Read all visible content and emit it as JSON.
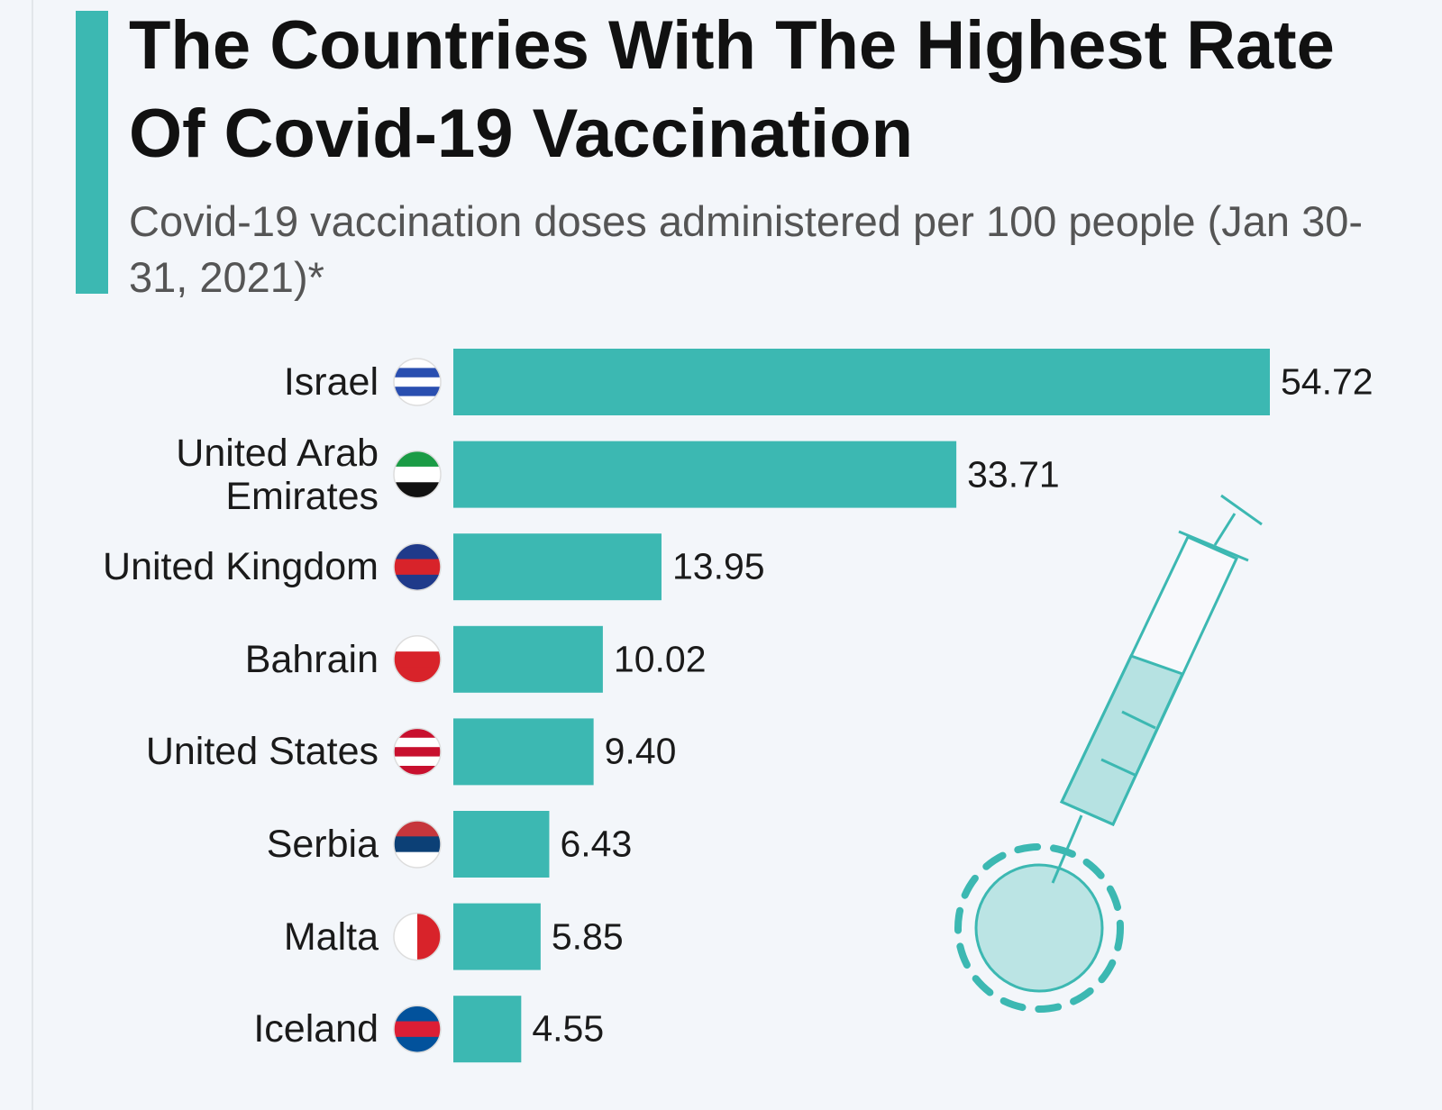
{
  "chart_data": {
    "type": "bar",
    "orientation": "horizontal",
    "title": "The Countries With The Highest Rate Of Covid-19 Vaccination",
    "subtitle": "Covid-19 vaccination doses administered per 100 people (Jan 30-31, 2021)*",
    "categories": [
      "Israel",
      "United Arab Emirates",
      "United Kingdom",
      "Bahrain",
      "United States",
      "Serbia",
      "Malta",
      "Iceland"
    ],
    "values": [
      54.72,
      33.71,
      13.95,
      10.02,
      9.4,
      6.43,
      5.85,
      4.55
    ],
    "value_labels": [
      "54.72",
      "33.71",
      "13.95",
      "10.02",
      "9.40",
      "6.43",
      "5.85",
      "4.55"
    ],
    "color": "#3cb8b2"
  }
}
